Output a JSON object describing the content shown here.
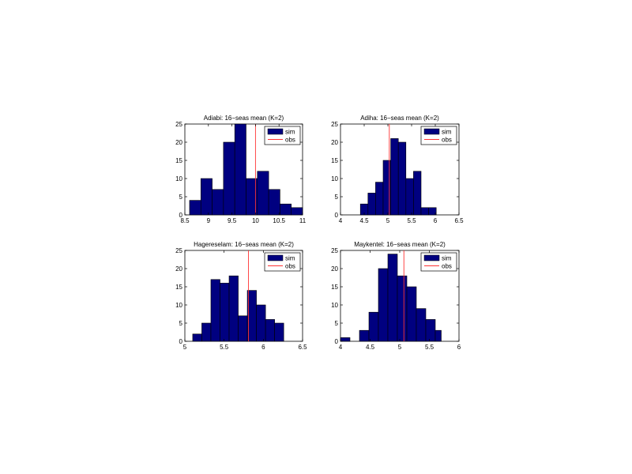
{
  "colors": {
    "bar_fill": "#000080",
    "bar_edge": "#000000",
    "obs_line": "#ff3333",
    "axes": "#000000",
    "background": "#ffffff"
  },
  "chart_data": [
    {
      "type": "bar",
      "subtype": "histogram",
      "title": "Adiabi: 16−seas mean (K=2)",
      "xlim": [
        8.5,
        11
      ],
      "ylim": [
        0,
        25
      ],
      "xticks": [
        8.5,
        9,
        9.5,
        10,
        10.5,
        11
      ],
      "xtick_labels": [
        "8.5",
        "9",
        "9.5",
        "10",
        "10.5",
        "11"
      ],
      "yticks": [
        0,
        5,
        10,
        15,
        20,
        25
      ],
      "bin_edges": [
        8.6,
        8.84,
        9.08,
        9.32,
        9.56,
        9.8,
        10.04,
        10.28,
        10.52,
        10.76,
        11.0
      ],
      "counts": [
        4,
        10,
        7,
        20,
        25,
        10,
        12,
        7,
        3,
        2
      ],
      "obs": 10.0,
      "legend": {
        "position": "top-right",
        "entries": [
          "sim",
          "obs"
        ]
      }
    },
    {
      "type": "bar",
      "subtype": "histogram",
      "title": "Adiha: 16−seas mean (K=2)",
      "xlim": [
        4,
        6.5
      ],
      "ylim": [
        0,
        25
      ],
      "xticks": [
        4,
        4.5,
        5,
        5.5,
        6,
        6.5
      ],
      "xtick_labels": [
        "4",
        "4.5",
        "5",
        "5.5",
        "6",
        "6.5"
      ],
      "yticks": [
        0,
        5,
        10,
        15,
        20,
        25
      ],
      "bin_edges": [
        4.42,
        4.58,
        4.74,
        4.9,
        5.06,
        5.22,
        5.38,
        5.54,
        5.7,
        5.86,
        6.02
      ],
      "counts": [
        3,
        6,
        9,
        15,
        21,
        20,
        10,
        12,
        2,
        2
      ],
      "obs": 5.03,
      "legend": {
        "position": "top-right",
        "entries": [
          "sim",
          "obs"
        ]
      }
    },
    {
      "type": "bar",
      "subtype": "histogram",
      "title": "Hagereselam: 16−seas mean (K=2)",
      "xlim": [
        5,
        6.5
      ],
      "ylim": [
        0,
        25
      ],
      "xticks": [
        5,
        5.5,
        6,
        6.5
      ],
      "xtick_labels": [
        "5",
        "5.5",
        "6",
        "6.5"
      ],
      "yticks": [
        0,
        5,
        10,
        15,
        20,
        25
      ],
      "bin_edges": [
        5.1,
        5.216,
        5.332,
        5.448,
        5.564,
        5.68,
        5.796,
        5.912,
        6.028,
        6.144,
        6.26
      ],
      "counts": [
        2,
        5,
        17,
        16,
        18,
        7,
        14,
        10,
        6,
        5
      ],
      "obs": 5.81,
      "legend": {
        "position": "top-right",
        "entries": [
          "sim",
          "obs"
        ]
      }
    },
    {
      "type": "bar",
      "subtype": "histogram",
      "title": "Maykentel: 16−seas mean (K=2)",
      "xlim": [
        4,
        6
      ],
      "ylim": [
        0,
        25
      ],
      "xticks": [
        4,
        4.5,
        5,
        5.5,
        6
      ],
      "xtick_labels": [
        "4",
        "4.5",
        "5",
        "5.5",
        "6"
      ],
      "yticks": [
        0,
        5,
        10,
        15,
        20,
        25
      ],
      "bin_edges": [
        4.0,
        4.16,
        4.32,
        4.48,
        4.64,
        4.8,
        4.96,
        5.12,
        5.28,
        5.44,
        5.6,
        5.7
      ],
      "counts": [
        1,
        0,
        3,
        8,
        20,
        24,
        18,
        15,
        9,
        6,
        3
      ],
      "obs": 5.07,
      "legend": {
        "position": "top-right",
        "entries": [
          "sim",
          "obs"
        ]
      }
    }
  ]
}
